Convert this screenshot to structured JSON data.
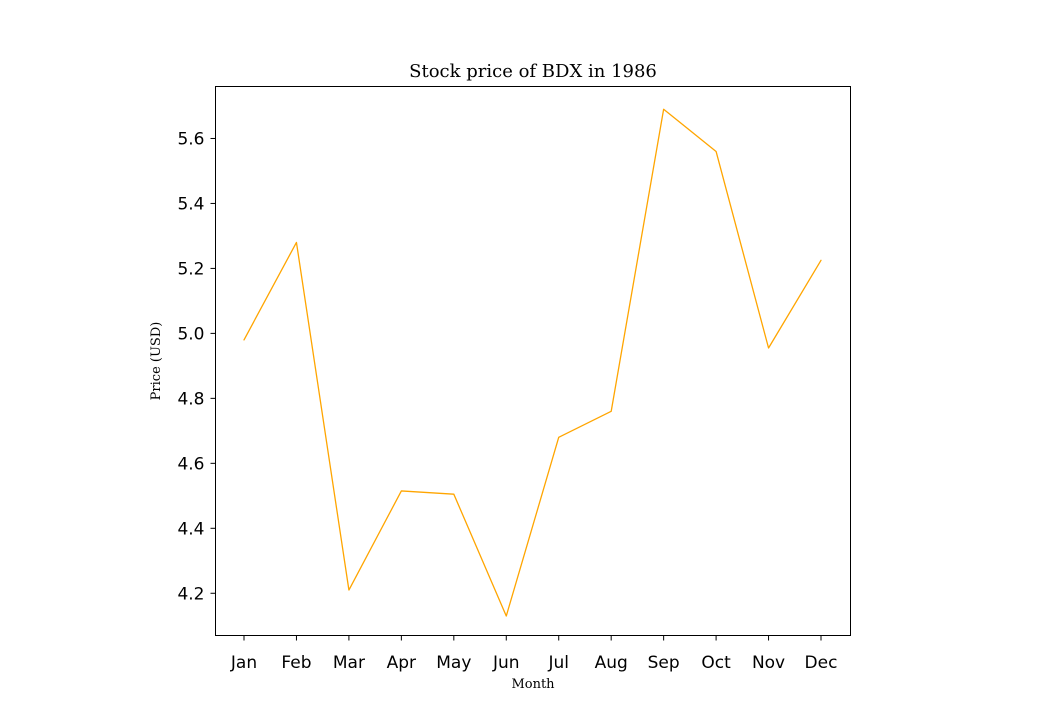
{
  "chart_data": {
    "type": "line",
    "title": "Stock price of BDX in 1986",
    "xlabel": "Month",
    "ylabel": "Price (USD)",
    "categories": [
      "Jan",
      "Feb",
      "Mar",
      "Apr",
      "May",
      "Jun",
      "Jul",
      "Aug",
      "Sep",
      "Oct",
      "Nov",
      "Dec"
    ],
    "series": [
      {
        "values": [
          4.98,
          5.28,
          4.21,
          4.515,
          4.505,
          4.13,
          4.68,
          4.76,
          5.69,
          5.56,
          4.955,
          5.225
        ],
        "color": "#FFA500"
      }
    ],
    "ylim": [
      4.07,
      5.76
    ],
    "yticks": [
      4.2,
      4.4,
      4.6,
      4.8,
      5.0,
      5.2,
      5.4,
      5.6
    ],
    "ytick_labels": [
      "4.2",
      "4.4",
      "4.6",
      "4.8",
      "5.0",
      "5.2",
      "5.4",
      "5.6"
    ],
    "grid": false,
    "legend": "none"
  }
}
